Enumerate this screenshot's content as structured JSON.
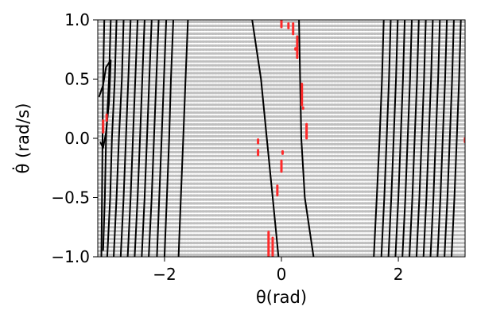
{
  "chart_data": {
    "type": "scatter",
    "xlabel": "θ(rad)",
    "ylabel": "θ̇ (rad/s)",
    "xlim": [
      -3.1416,
      3.1416
    ],
    "ylim": [
      -1.0,
      1.0
    ],
    "xticks": [
      -2,
      0,
      2
    ],
    "xtick_labels": [
      "−2",
      "0",
      "2"
    ],
    "yticks": [
      -1.0,
      -0.5,
      0.0,
      0.5,
      1.0
    ],
    "ytick_labels": [
      "−1.0",
      "−0.5",
      "0.0",
      "0.5",
      "1.0"
    ],
    "grid": false,
    "grid_points": {
      "nx": 120,
      "ny": 60,
      "color": "#8c8c8c"
    },
    "contours": [
      [
        [
          -3.03,
          1.0
        ],
        [
          -3.05,
          0.5
        ],
        [
          -3.06,
          0.0
        ],
        [
          -3.07,
          -0.5
        ],
        [
          -3.08,
          -1.0
        ]
      ],
      [
        [
          -3.12,
          0.35
        ],
        [
          -3.05,
          0.45
        ],
        [
          -3.0,
          0.6
        ],
        [
          -2.92,
          0.66
        ],
        [
          -2.95,
          0.3
        ],
        [
          -3.0,
          0.05
        ],
        [
          -3.05,
          -0.08
        ],
        [
          -3.1,
          -0.03
        ]
      ],
      [
        [
          -2.92,
          1.0
        ],
        [
          -2.95,
          0.5
        ],
        [
          -3.0,
          0.0
        ],
        [
          -3.02,
          -0.5
        ],
        [
          -3.05,
          -0.95
        ]
      ],
      [
        [
          -2.82,
          1.0
        ],
        [
          -2.85,
          0.5
        ],
        [
          -2.9,
          0.0
        ],
        [
          -2.93,
          -0.5
        ],
        [
          -2.98,
          -1.0
        ]
      ],
      [
        [
          -2.7,
          1.0
        ],
        [
          -2.73,
          0.5
        ],
        [
          -2.78,
          0.0
        ],
        [
          -2.82,
          -0.5
        ],
        [
          -2.87,
          -1.0
        ]
      ],
      [
        [
          -2.58,
          1.0
        ],
        [
          -2.62,
          0.5
        ],
        [
          -2.66,
          0.0
        ],
        [
          -2.7,
          -0.5
        ],
        [
          -2.75,
          -1.0
        ]
      ],
      [
        [
          -2.46,
          1.0
        ],
        [
          -2.5,
          0.5
        ],
        [
          -2.54,
          0.0
        ],
        [
          -2.58,
          -0.5
        ],
        [
          -2.63,
          -1.0
        ]
      ],
      [
        [
          -2.34,
          1.0
        ],
        [
          -2.38,
          0.5
        ],
        [
          -2.42,
          0.0
        ],
        [
          -2.46,
          -0.5
        ],
        [
          -2.51,
          -1.0
        ]
      ],
      [
        [
          -2.22,
          1.0
        ],
        [
          -2.26,
          0.5
        ],
        [
          -2.3,
          0.0
        ],
        [
          -2.34,
          -0.5
        ],
        [
          -2.39,
          -1.0
        ]
      ],
      [
        [
          -2.1,
          1.0
        ],
        [
          -2.14,
          0.5
        ],
        [
          -2.18,
          0.0
        ],
        [
          -2.22,
          -0.5
        ],
        [
          -2.27,
          -1.0
        ]
      ],
      [
        [
          -1.97,
          1.0
        ],
        [
          -2.01,
          0.5
        ],
        [
          -2.05,
          0.0
        ],
        [
          -2.09,
          -0.5
        ],
        [
          -2.13,
          -1.0
        ]
      ],
      [
        [
          -1.85,
          1.0
        ],
        [
          -1.89,
          0.5
        ],
        [
          -1.92,
          0.0
        ],
        [
          -1.96,
          -0.5
        ],
        [
          -2.0,
          -1.0
        ]
      ],
      [
        [
          -1.6,
          1.0
        ],
        [
          -1.64,
          0.5
        ],
        [
          -1.68,
          0.0
        ],
        [
          -1.72,
          -0.5
        ],
        [
          -1.76,
          -1.0
        ]
      ],
      [
        [
          -0.5,
          1.0
        ],
        [
          -0.35,
          0.5
        ],
        [
          -0.25,
          0.0
        ],
        [
          -0.15,
          -0.5
        ],
        [
          -0.05,
          -1.0
        ]
      ],
      [
        [
          0.3,
          1.0
        ],
        [
          0.32,
          0.5
        ],
        [
          0.34,
          0.0
        ],
        [
          0.4,
          -0.5
        ],
        [
          0.55,
          -1.0
        ]
      ],
      [
        [
          1.75,
          1.0
        ],
        [
          1.72,
          0.5
        ],
        [
          1.68,
          0.0
        ],
        [
          1.63,
          -0.5
        ],
        [
          1.58,
          -1.0
        ]
      ],
      [
        [
          1.87,
          1.0
        ],
        [
          1.84,
          0.5
        ],
        [
          1.8,
          0.0
        ],
        [
          1.76,
          -0.5
        ],
        [
          1.71,
          -1.0
        ]
      ],
      [
        [
          1.99,
          1.0
        ],
        [
          1.96,
          0.5
        ],
        [
          1.92,
          0.0
        ],
        [
          1.88,
          -0.5
        ],
        [
          1.83,
          -1.0
        ]
      ],
      [
        [
          2.11,
          1.0
        ],
        [
          2.08,
          0.5
        ],
        [
          2.04,
          0.0
        ],
        [
          2.0,
          -0.5
        ],
        [
          1.95,
          -1.0
        ]
      ],
      [
        [
          2.23,
          1.0
        ],
        [
          2.2,
          0.5
        ],
        [
          2.16,
          0.0
        ],
        [
          2.12,
          -0.5
        ],
        [
          2.07,
          -1.0
        ]
      ],
      [
        [
          2.35,
          1.0
        ],
        [
          2.32,
          0.5
        ],
        [
          2.28,
          0.0
        ],
        [
          2.24,
          -0.5
        ],
        [
          2.19,
          -1.0
        ]
      ],
      [
        [
          2.47,
          1.0
        ],
        [
          2.44,
          0.5
        ],
        [
          2.4,
          0.0
        ],
        [
          2.36,
          -0.5
        ],
        [
          2.31,
          -1.0
        ]
      ],
      [
        [
          2.59,
          1.0
        ],
        [
          2.56,
          0.5
        ],
        [
          2.52,
          0.0
        ],
        [
          2.48,
          -0.5
        ],
        [
          2.43,
          -1.0
        ]
      ],
      [
        [
          2.71,
          1.0
        ],
        [
          2.68,
          0.5
        ],
        [
          2.64,
          0.0
        ],
        [
          2.6,
          -0.5
        ],
        [
          2.55,
          -1.0
        ]
      ],
      [
        [
          2.83,
          1.0
        ],
        [
          2.8,
          0.5
        ],
        [
          2.76,
          0.0
        ],
        [
          2.72,
          -0.5
        ],
        [
          2.67,
          -1.0
        ]
      ],
      [
        [
          2.95,
          1.0
        ],
        [
          2.92,
          0.5
        ],
        [
          2.88,
          0.0
        ],
        [
          2.84,
          -0.5
        ],
        [
          2.79,
          -1.0
        ]
      ],
      [
        [
          3.07,
          1.0
        ],
        [
          3.04,
          0.5
        ],
        [
          3.0,
          0.0
        ],
        [
          2.96,
          -0.5
        ],
        [
          2.91,
          -1.0
        ]
      ]
    ],
    "contour_color": "#000000",
    "red_segments": [
      [
        [
          -3.05,
          0.15
        ],
        [
          -3.05,
          0.05
        ]
      ],
      [
        [
          -2.99,
          0.2
        ],
        [
          -2.99,
          0.15
        ]
      ],
      [
        [
          0.0,
          1.0
        ],
        [
          0.0,
          0.94
        ]
      ],
      [
        [
          0.12,
          0.97
        ],
        [
          0.12,
          0.93
        ]
      ],
      [
        [
          0.2,
          0.97
        ],
        [
          0.2,
          0.88
        ]
      ],
      [
        [
          0.27,
          0.86
        ],
        [
          0.27,
          0.68
        ]
      ],
      [
        [
          0.24,
          0.76
        ],
        [
          0.24,
          0.75
        ]
      ],
      [
        [
          0.35,
          0.46
        ],
        [
          0.35,
          0.28
        ]
      ],
      [
        [
          0.37,
          0.26
        ],
        [
          0.37,
          0.25
        ]
      ],
      [
        [
          0.43,
          0.12
        ],
        [
          0.43,
          0.0
        ]
      ],
      [
        [
          -0.4,
          -0.01
        ],
        [
          -0.4,
          -0.04
        ]
      ],
      [
        [
          -0.4,
          -0.1
        ],
        [
          -0.4,
          -0.14
        ]
      ],
      [
        [
          0.02,
          -0.11
        ],
        [
          0.02,
          -0.13
        ]
      ],
      [
        [
          0.0,
          -0.19
        ],
        [
          0.0,
          -0.28
        ]
      ],
      [
        [
          -0.07,
          -0.4
        ],
        [
          -0.07,
          -0.48
        ]
      ],
      [
        [
          -0.22,
          -0.79
        ],
        [
          -0.22,
          -1.0
        ]
      ],
      [
        [
          -0.15,
          -0.84
        ],
        [
          -0.15,
          -1.0
        ]
      ],
      [
        [
          3.14,
          0.0
        ],
        [
          3.14,
          -0.03
        ]
      ]
    ],
    "red_color": "#ff2a2a"
  }
}
